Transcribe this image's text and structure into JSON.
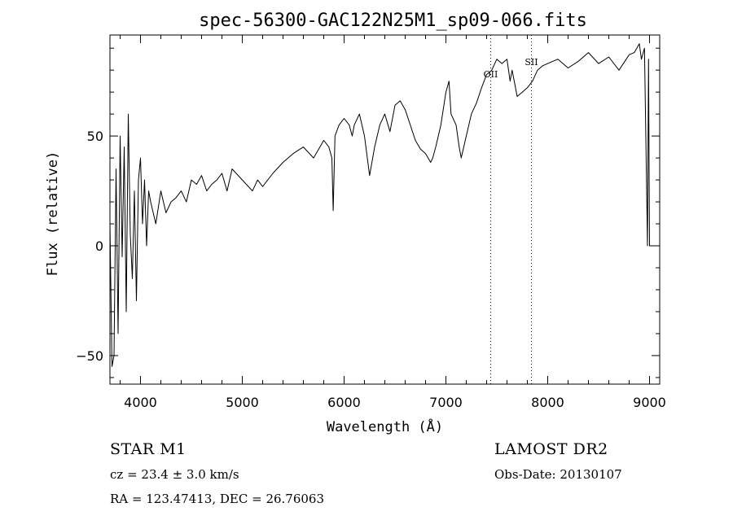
{
  "chart_data": {
    "type": "line",
    "title": "spec-56300-GAC122N25M1_sp09-066.fits",
    "xlabel": "Wavelength (Å)",
    "ylabel": "Flux (relative)",
    "xlim": [
      3700,
      9100
    ],
    "ylim": [
      -63,
      96
    ],
    "xticks": [
      4000,
      5000,
      6000,
      7000,
      8000,
      9000
    ],
    "yticks": [
      -50,
      0,
      50
    ],
    "grid": false,
    "line_color": "#000000",
    "annotations": [
      {
        "label": "OII",
        "x": 7440
      },
      {
        "label": "SII",
        "x": 7840
      }
    ],
    "series": [
      {
        "x": [
          3700,
          3720,
          3740,
          3760,
          3780,
          3800,
          3820,
          3840,
          3860,
          3880,
          3900,
          3920,
          3940,
          3960,
          3980,
          4000,
          4020,
          4040,
          4060,
          4080,
          4100,
          4150,
          4200,
          4250,
          4300,
          4350,
          4400,
          4450,
          4500,
          4550,
          4600,
          4650,
          4700,
          4750,
          4800,
          4850,
          4900,
          5000,
          5100,
          5150,
          5200,
          5300,
          5400,
          5500,
          5600,
          5700,
          5800,
          5850,
          5880,
          5893,
          5910,
          5950,
          6000,
          6050,
          6080,
          6100,
          6150,
          6200,
          6250,
          6300,
          6350,
          6400,
          6450,
          6500,
          6550,
          6600,
          6650,
          6700,
          6750,
          6800,
          6850,
          6870,
          6900,
          6950,
          7000,
          7030,
          7050,
          7100,
          7130,
          7150,
          7200,
          7250,
          7300,
          7350,
          7400,
          7450,
          7500,
          7550,
          7600,
          7630,
          7650,
          7700,
          7750,
          7800,
          7850,
          7900,
          7950,
          8000,
          8100,
          8200,
          8300,
          8400,
          8500,
          8600,
          8700,
          8800,
          8850,
          8900,
          8920,
          8950,
          8980,
          8990,
          9000,
          9020,
          9050
        ],
        "values": [
          10,
          -55,
          -50,
          35,
          -40,
          50,
          -5,
          45,
          -30,
          60,
          5,
          -15,
          25,
          -25,
          30,
          40,
          10,
          30,
          0,
          25,
          20,
          10,
          25,
          15,
          20,
          22,
          25,
          20,
          30,
          28,
          32,
          25,
          28,
          30,
          33,
          25,
          35,
          30,
          25,
          30,
          27,
          33,
          38,
          42,
          45,
          40,
          48,
          45,
          40,
          16,
          50,
          55,
          58,
          55,
          50,
          55,
          60,
          50,
          32,
          45,
          55,
          60,
          52,
          64,
          66,
          62,
          55,
          48,
          44,
          42,
          38,
          40,
          45,
          55,
          70,
          75,
          60,
          55,
          45,
          40,
          50,
          60,
          65,
          72,
          78,
          80,
          85,
          83,
          85,
          75,
          80,
          68,
          70,
          72,
          75,
          80,
          82,
          83,
          85,
          81,
          84,
          88,
          83,
          86,
          80,
          87,
          88,
          92,
          85,
          90,
          0,
          85,
          0,
          0,
          0
        ]
      }
    ]
  },
  "info": {
    "left_line1": "STAR    M1",
    "left_line2": "cz = 23.4 ± 3.0 km/s",
    "left_line3": "RA = 123.47413, DEC =  26.76063",
    "right_line1": "LAMOST DR2",
    "right_line2": "Obs-Date: 20130107"
  }
}
